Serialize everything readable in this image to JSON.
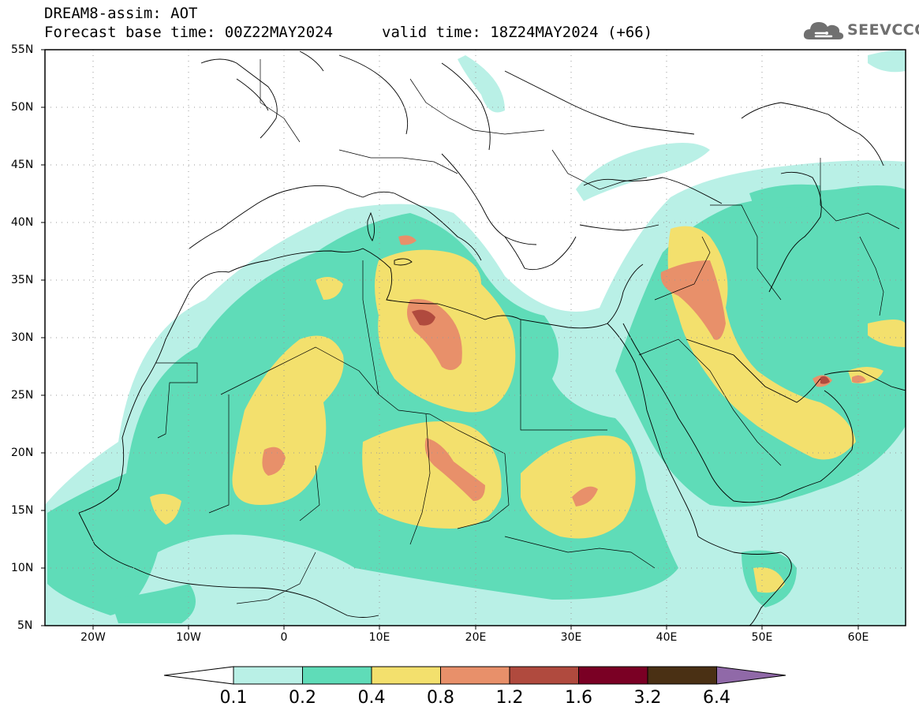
{
  "header": {
    "title_line1": "DREAM8-assim: AOT",
    "forecast_base": "Forecast base time: 00Z22MAY2024",
    "valid_time": "valid time: 18Z24MAY2024 (+66)"
  },
  "logo": {
    "text": "SEEVCCC",
    "icon": "cloud-icon"
  },
  "axes": {
    "lat_labels": [
      "55N",
      "50N",
      "45N",
      "40N",
      "35N",
      "30N",
      "25N",
      "20N",
      "15N",
      "10N",
      "5N"
    ],
    "lon_labels": [
      "20W",
      "10W",
      "0",
      "10E",
      "20E",
      "30E",
      "40E",
      "50E",
      "60E"
    ]
  },
  "colorbar": {
    "labels": [
      "0.1",
      "0.2",
      "0.4",
      "0.8",
      "1.2",
      "1.6",
      "3.2",
      "6.4"
    ],
    "colors": [
      "#b9f0e6",
      "#5fdcb8",
      "#f3e06d",
      "#e8906a",
      "#b04a3e",
      "#7a0024",
      "#4a3014",
      "#9069a8"
    ]
  }
}
